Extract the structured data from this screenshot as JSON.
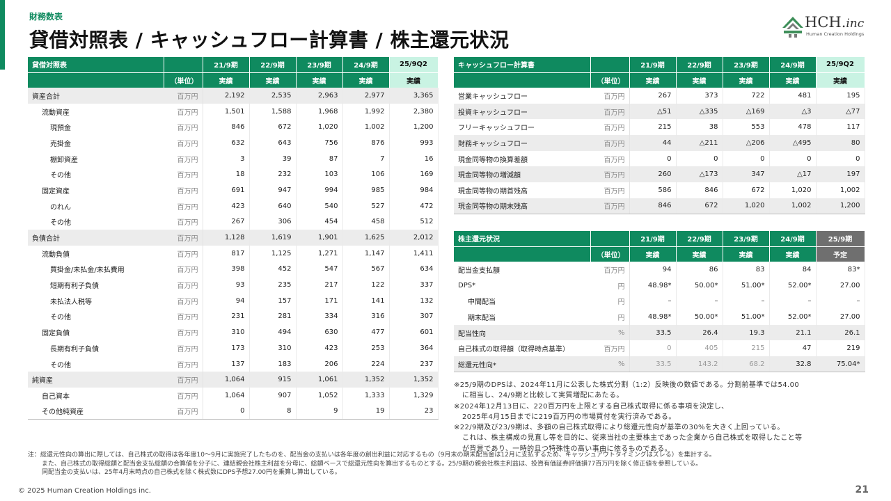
{
  "header": {
    "section": "財務数表",
    "title": "貸借対照表 / キャッシュフロー計算書 / 株主還元状況"
  },
  "logo": {
    "main": "HCH.",
    "suffix": "inc",
    "sub": "Human Creation Holdings"
  },
  "bs": {
    "title": "貸借対照表",
    "unit_header": "（単位）",
    "periods": [
      "21/9期",
      "22/9期",
      "23/9期",
      "24/9期",
      "25/9Q2"
    ],
    "types": [
      "実績",
      "実績",
      "実績",
      "実績",
      "実績"
    ],
    "rows": [
      {
        "label": "資産合計",
        "unit": "百万円",
        "values": [
          "2,192",
          "2,535",
          "2,963",
          "2,977",
          "3,365"
        ]
      },
      {
        "label": "流動資産",
        "unit": "百万円",
        "values": [
          "1,501",
          "1,588",
          "1,968",
          "1,992",
          "2,380"
        ]
      },
      {
        "label": "現預金",
        "unit": "百万円",
        "values": [
          "846",
          "672",
          "1,020",
          "1,002",
          "1,200"
        ]
      },
      {
        "label": "売掛金",
        "unit": "百万円",
        "values": [
          "632",
          "643",
          "756",
          "876",
          "993"
        ]
      },
      {
        "label": "棚卸資産",
        "unit": "百万円",
        "values": [
          "3",
          "39",
          "87",
          "7",
          "16"
        ]
      },
      {
        "label": "その他",
        "unit": "百万円",
        "values": [
          "18",
          "232",
          "103",
          "106",
          "169"
        ]
      },
      {
        "label": "固定資産",
        "unit": "百万円",
        "values": [
          "691",
          "947",
          "994",
          "985",
          "984"
        ]
      },
      {
        "label": "のれん",
        "unit": "百万円",
        "values": [
          "423",
          "640",
          "540",
          "527",
          "472"
        ]
      },
      {
        "label": "その他",
        "unit": "百万円",
        "values": [
          "267",
          "306",
          "454",
          "458",
          "512"
        ]
      },
      {
        "label": "負債合計",
        "unit": "百万円",
        "values": [
          "1,128",
          "1,619",
          "1,901",
          "1,625",
          "2,012"
        ]
      },
      {
        "label": "流動負債",
        "unit": "百万円",
        "values": [
          "817",
          "1,125",
          "1,271",
          "1,147",
          "1,411"
        ]
      },
      {
        "label": "買掛金/未払金/未払費用",
        "unit": "百万円",
        "values": [
          "398",
          "452",
          "547",
          "567",
          "634"
        ]
      },
      {
        "label": "短期有利子負債",
        "unit": "百万円",
        "values": [
          "93",
          "235",
          "217",
          "122",
          "337"
        ]
      },
      {
        "label": "未払法人税等",
        "unit": "百万円",
        "values": [
          "94",
          "157",
          "171",
          "141",
          "132"
        ]
      },
      {
        "label": "その他",
        "unit": "百万円",
        "values": [
          "231",
          "281",
          "334",
          "316",
          "307"
        ]
      },
      {
        "label": "固定負債",
        "unit": "百万円",
        "values": [
          "310",
          "494",
          "630",
          "477",
          "601"
        ]
      },
      {
        "label": "長期有利子負債",
        "unit": "百万円",
        "values": [
          "173",
          "310",
          "423",
          "253",
          "364"
        ]
      },
      {
        "label": "その他",
        "unit": "百万円",
        "values": [
          "137",
          "183",
          "206",
          "224",
          "237"
        ]
      },
      {
        "label": "純資産",
        "unit": "百万円",
        "values": [
          "1,064",
          "915",
          "1,061",
          "1,352",
          "1,352"
        ]
      },
      {
        "label": "自己資本",
        "unit": "百万円",
        "values": [
          "1,064",
          "907",
          "1,052",
          "1,333",
          "1,329"
        ]
      },
      {
        "label": "その他純資産",
        "unit": "百万円",
        "values": [
          "0",
          "8",
          "9",
          "19",
          "23"
        ]
      }
    ]
  },
  "cf": {
    "title": "キャッシュフロー計算書",
    "unit_header": "（単位）",
    "periods": [
      "21/9期",
      "22/9期",
      "23/9期",
      "24/9期",
      "25/9Q2"
    ],
    "types": [
      "実績",
      "実績",
      "実績",
      "実績",
      "実績"
    ],
    "rows": [
      {
        "label": "営業キャッシュフロー",
        "unit": "百万円",
        "values": [
          "267",
          "373",
          "722",
          "481",
          "195"
        ]
      },
      {
        "label": "投資キャッシュフロー",
        "unit": "百万円",
        "values": [
          "△51",
          "△335",
          "△169",
          "△3",
          "△77"
        ]
      },
      {
        "label": "フリーキャッシュフロー",
        "unit": "百万円",
        "values": [
          "215",
          "38",
          "553",
          "478",
          "117"
        ]
      },
      {
        "label": "財務キャッシュフロー",
        "unit": "百万円",
        "values": [
          "44",
          "△211",
          "△206",
          "△495",
          "80"
        ]
      },
      {
        "label": "現金同等物の換算差額",
        "unit": "百万円",
        "values": [
          "0",
          "0",
          "0",
          "0",
          "0"
        ]
      },
      {
        "label": "現金同等物の増減額",
        "unit": "百万円",
        "values": [
          "260",
          "△173",
          "347",
          "△17",
          "197"
        ]
      },
      {
        "label": "現金同等物の期首残高",
        "unit": "百万円",
        "values": [
          "586",
          "846",
          "672",
          "1,020",
          "1,002"
        ]
      },
      {
        "label": "現金同等物の期末残高",
        "unit": "百万円",
        "values": [
          "846",
          "672",
          "1,020",
          "1,002",
          "1,200"
        ]
      }
    ]
  },
  "sh": {
    "title": "株主還元状況",
    "unit_header": "（単位）",
    "periods": [
      "21/9期",
      "22/9期",
      "23/9期",
      "24/9期",
      "25/9期"
    ],
    "types": [
      "実績",
      "実績",
      "実績",
      "実績",
      "予定"
    ],
    "rows": [
      {
        "label": "配当金支払額",
        "unit": "百万円",
        "values": [
          "94",
          "86",
          "83",
          "84",
          "83*"
        ]
      },
      {
        "label": "DPS*",
        "unit": "円",
        "values": [
          "48.98*",
          "50.00*",
          "51.00*",
          "52.00*",
          "27.00"
        ]
      },
      {
        "label": "中間配当",
        "unit": "円",
        "values": [
          "–",
          "–",
          "–",
          "–",
          "–"
        ]
      },
      {
        "label": "期末配当",
        "unit": "円",
        "values": [
          "48.98*",
          "50.00*",
          "51.00*",
          "52.00*",
          "27.00"
        ]
      },
      {
        "label": "配当性向",
        "unit": "%",
        "values": [
          "33.5",
          "26.4",
          "19.3",
          "21.1",
          "26.1"
        ]
      },
      {
        "label": "自己株式の取得額（取得時点基準）",
        "unit": "百万円",
        "values": [
          "0",
          "405",
          "215",
          "47",
          "219"
        ]
      },
      {
        "label": "総還元性向*",
        "unit": "%",
        "values": [
          "33.5",
          "143.2",
          "68.2",
          "32.8",
          "75.04*"
        ]
      }
    ]
  },
  "notes": [
    "※25/9期のDPSは、2024年11月に公表した株式分割（1:2）反映後の数値である。分割前基準では54.00",
    "に相当し、24/9期と比較して実質増配にあたる。",
    "※2024年12月13日に、220百万円を上限とする自己株式取得に係る事項を決定し、",
    "2025年4月15日までに219百万円の市場買付を実行済みである。",
    "※22/9期及び23/9期は、多額の自己株式取得により総還元性向が基準の30%を大きく上回っている。",
    "これは、株主構成の見直し等を目的に、従来当社の主要株主であった企業から自己株式を取得したこと等",
    "が背景であり、一時的且つ特殊性の高い事由に依るものである。"
  ],
  "footnote": [
    "注：総還元性向の算出に際しては、自己株式の取得は各年度10～9月に実施完了したものを、配当金の支払いは各年度の創出利益に対応するもの（9月末の期末配当金は12月に支払するため、キャッシュアウトタイミングはズレる）を集計する。",
    "また、自己株式の取得総額と配当金支払総額の合算値を分子に、連結親会社株主利益を分母に、総額ベースで総還元性向を算出するものとする。25/9期の親会社株主利益は、投資有価証券評価損77百万円を除く修正値を参照している。",
    "同配当金の支払いは、25年4月末時点の自己株式を除く株式数にDPS予想27.00円を乗算し算出している。"
  ],
  "footer": {
    "copyright": "© 2025 Human Creation Holdings inc.",
    "page": "21"
  }
}
